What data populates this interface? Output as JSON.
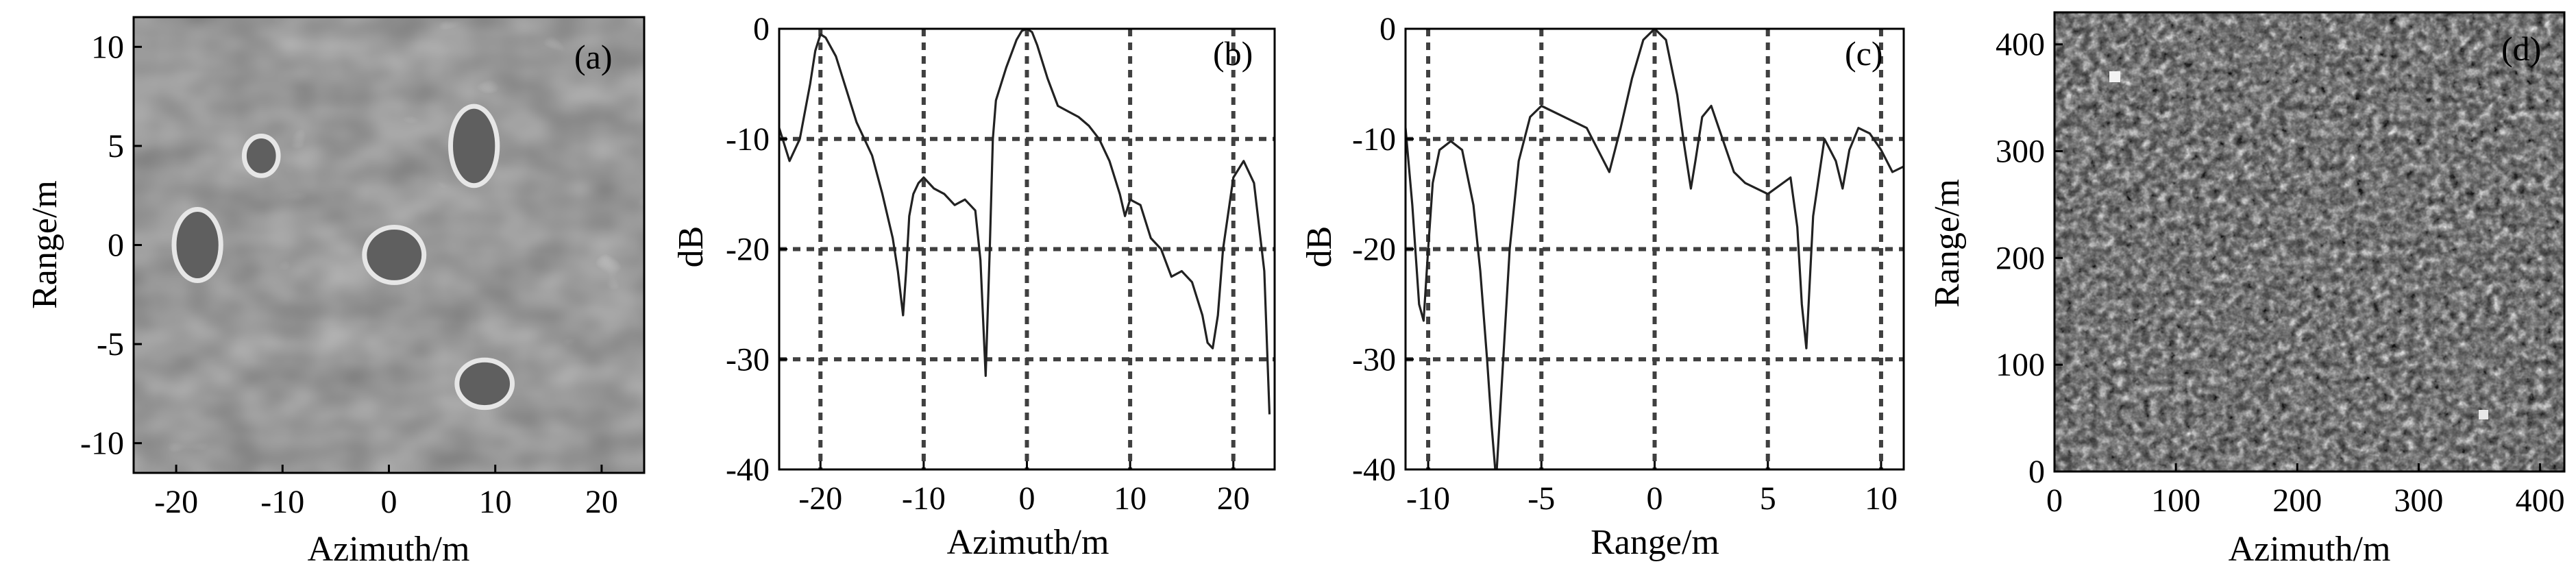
{
  "chart_data": [
    {
      "panel": "(a)",
      "type": "heatmap",
      "xlabel": "Azimuth/m",
      "ylabel": "Range/m",
      "xlim": [
        -24,
        24
      ],
      "ylim": [
        -11.5,
        11.5
      ],
      "xticks": [
        "-20",
        "-10",
        "0",
        "10",
        "20"
      ],
      "yticks": [
        "10",
        "5",
        "0",
        "-5",
        "-10"
      ],
      "colormap": "gray",
      "background_color": "#7a7a7a",
      "bright_rings": [
        {
          "x": -18,
          "y": 0,
          "rx": 2.2,
          "ry": 1.8
        },
        {
          "x": -12,
          "y": 4.5,
          "rx": 1.6,
          "ry": 1.0
        },
        {
          "x": 0.5,
          "y": -0.5,
          "rx": 2.8,
          "ry": 1.4
        },
        {
          "x": 8,
          "y": 5,
          "rx": 2.2,
          "ry": 2.0
        },
        {
          "x": 9,
          "y": -7,
          "rx": 2.6,
          "ry": 1.2
        }
      ]
    },
    {
      "panel": "(b)",
      "type": "line",
      "xlabel": "Azimuth/m",
      "ylabel": "dB",
      "xlim": [
        -24,
        24
      ],
      "ylim": [
        -40,
        0
      ],
      "xticks": [
        "-20",
        "-10",
        "0",
        "10",
        "20"
      ],
      "yticks": [
        "0",
        "-10",
        "-20",
        "-30",
        "-40"
      ],
      "grid_x": [
        -20,
        -10,
        0,
        10,
        20
      ],
      "grid_y": [
        -10,
        -20,
        -30
      ],
      "x": [
        -24,
        -23,
        -22,
        -21,
        -20.5,
        -20,
        -19.5,
        -18.5,
        -17.5,
        -16.5,
        -15,
        -14,
        -13,
        -12.5,
        -12,
        -11.7,
        -11.4,
        -11,
        -10.5,
        -10,
        -9,
        -8,
        -7,
        -6,
        -5,
        -4.5,
        -4,
        -3.6,
        -3.3,
        -3,
        -2,
        -1,
        -0.5,
        0,
        0.5,
        1,
        2,
        3,
        4,
        5,
        6,
        7,
        8,
        9,
        9.5,
        10,
        11,
        12,
        13,
        14,
        15,
        16,
        17,
        17.5,
        18,
        18.5,
        19,
        20,
        21,
        22,
        23,
        23.5
      ],
      "y": [
        -9,
        -12,
        -10,
        -5,
        -2,
        -0.5,
        -0.8,
        -2.5,
        -5.5,
        -8.5,
        -11.5,
        -15,
        -19,
        -22,
        -26,
        -22,
        -17,
        -15,
        -14,
        -13.5,
        -14.5,
        -15,
        -16,
        -15.5,
        -16.5,
        -21,
        -31.5,
        -20,
        -10,
        -6.5,
        -3.5,
        -1,
        -0.2,
        0,
        -0.3,
        -1.5,
        -4.5,
        -7,
        -7.5,
        -8,
        -8.8,
        -10,
        -12,
        -15,
        -17,
        -15.5,
        -16,
        -19,
        -20,
        -22.5,
        -22,
        -23,
        -26,
        -28.5,
        -29,
        -26,
        -20,
        -13.5,
        -12,
        -14,
        -22,
        -35
      ]
    },
    {
      "panel": "(c)",
      "type": "line",
      "xlabel": "Range/m",
      "ylabel": "dB",
      "xlim": [
        -11,
        11
      ],
      "ylim": [
        -40,
        0
      ],
      "xticks": [
        "-10",
        "-5",
        "0",
        "5",
        "10"
      ],
      "yticks": [
        "0",
        "-10",
        "-20",
        "-30",
        "-40"
      ],
      "grid_x": [
        -10,
        -5,
        0,
        5,
        10
      ],
      "grid_y": [
        -10,
        -20,
        -30
      ],
      "x": [
        -11,
        -10.7,
        -10.4,
        -10.2,
        -10.0,
        -9.8,
        -9.5,
        -9,
        -8.5,
        -8,
        -7.7,
        -7.4,
        -7.2,
        -7.0,
        -6.8,
        -6.4,
        -6,
        -5.5,
        -5,
        -4,
        -3,
        -2.5,
        -2,
        -1.5,
        -1,
        -0.5,
        0,
        0.5,
        1,
        1.3,
        1.6,
        1.8,
        2.1,
        2.5,
        3,
        3.5,
        4,
        5,
        6,
        6.3,
        6.5,
        6.7,
        7,
        7.5,
        8,
        8.3,
        8.6,
        9,
        9.5,
        10,
        10.5,
        11
      ],
      "y": [
        -9,
        -16,
        -25,
        -26.5,
        -20,
        -14,
        -11,
        -10.2,
        -11,
        -16,
        -22,
        -30,
        -36,
        -41,
        -34,
        -20,
        -12,
        -8,
        -7,
        -8,
        -9,
        -11,
        -13,
        -9,
        -4.5,
        -1,
        0,
        -1,
        -6,
        -10.5,
        -14.5,
        -12,
        -8,
        -7,
        -10,
        -13,
        -14,
        -15,
        -13.5,
        -18,
        -25,
        -29,
        -17,
        -10,
        -12,
        -14.5,
        -11,
        -9,
        -9.5,
        -11,
        -13,
        -12.5
      ]
    },
    {
      "panel": "(d)",
      "type": "heatmap",
      "xlabel": "Azimuth/m",
      "ylabel": "Range/m",
      "xlim": [
        0,
        420
      ],
      "ylim": [
        0,
        430
      ],
      "xticks": [
        "0",
        "100",
        "200",
        "300",
        "400"
      ],
      "yticks": [
        "400",
        "300",
        "200",
        "100",
        "0"
      ],
      "colormap": "gray",
      "texture": "speckle"
    }
  ]
}
